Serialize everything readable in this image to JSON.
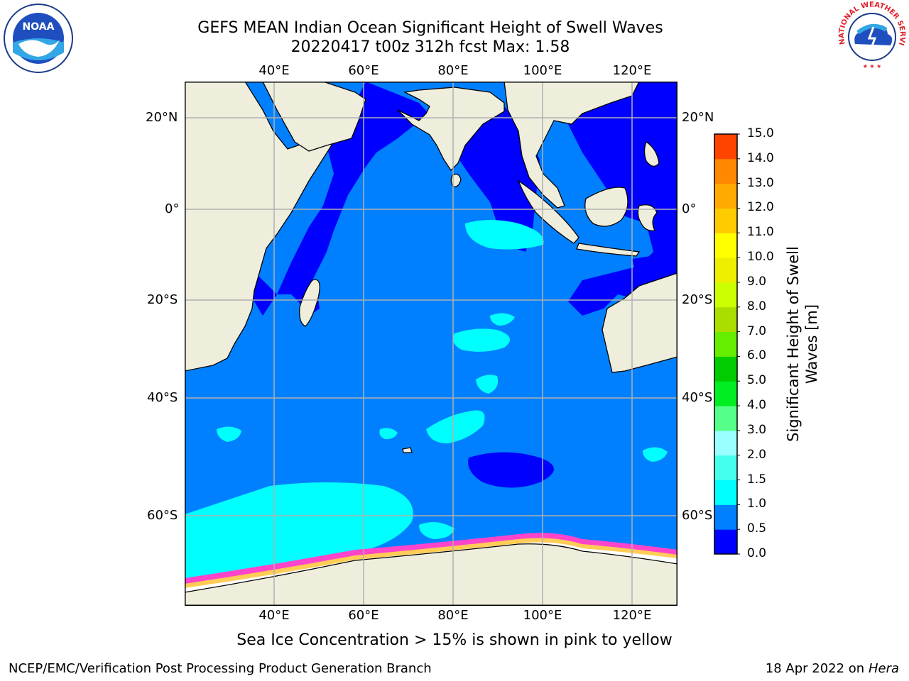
{
  "title": {
    "line1": "GEFS MEAN Indian Ocean Significant Height of Swell Waves",
    "line2": "20220417 t00z 312h fcst   Max: 1.58"
  },
  "map": {
    "lon_labels": [
      "40°E",
      "60°E",
      "80°E",
      "100°E",
      "120°E"
    ],
    "lat_labels": [
      "20°N",
      "0°",
      "20°S",
      "40°S",
      "60°S"
    ],
    "lat_labels_right": [
      "20°N",
      "0°",
      "20°S",
      "40°S",
      "60°S"
    ],
    "extent": {
      "lon": [
        20,
        130
      ],
      "lat": [
        -74,
        24
      ]
    },
    "colors": {
      "land": "#efeedd",
      "ocean_0_0_5": "#0000ff",
      "ocean_0_5_1": "#0080ff",
      "ocean_1_1_5": "#00ffff",
      "sea_ice": "#ffffff",
      "grid": "#b0b0b0"
    }
  },
  "colorbar": {
    "label": "Significant Height of Swell Waves [m]",
    "ticks": [
      "0.0",
      "0.5",
      "1.0",
      "1.5",
      "2.0",
      "3.0",
      "4.0",
      "5.0",
      "6.0",
      "7.0",
      "8.0",
      "9.0",
      "10.0",
      "11.0",
      "12.0",
      "13.0",
      "14.0",
      "15.0"
    ],
    "colors": [
      "#0000ff",
      "#0080ff",
      "#00ffff",
      "#44ffee",
      "#99ffff",
      "#55ff88",
      "#00ee22",
      "#00cc00",
      "#66ee00",
      "#aadd00",
      "#ccff00",
      "#eeee00",
      "#ffff00",
      "#ffcc00",
      "#ffaa00",
      "#ff8800",
      "#ff4400",
      "#ff0000"
    ]
  },
  "footnote": "Sea Ice Concentration > 15% is shown in pink to yellow",
  "credit_left": "NCEP/EMC/Verification Post Processing Product Generation Branch",
  "credit_right_prefix": "18 Apr 2022 on ",
  "credit_right_host": "Hera",
  "logos": {
    "noaa_text": "NOAA",
    "nws_ring_text": "NATIONAL WEATHER SERVICE"
  }
}
